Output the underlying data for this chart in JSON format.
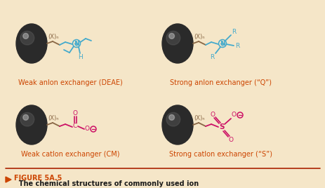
{
  "background_color": "#f5e6c8",
  "label_color": "#cc4400",
  "caption_orange": "#cc4400",
  "caption_black": "#1a1a1a",
  "cyan_color": "#44aacc",
  "magenta_color": "#cc1166",
  "bond_color": "#886644",
  "line_color_bottom": "#aa2200",
  "labels": {
    "top_left": "Weak anlon exchanger (DEAE)",
    "top_right": "Strong anlon exchanger (“Q”)",
    "bottom_left": "Weak catlon exchanger (CM)",
    "bottom_right": "Strong catlon exchanger (“S”)"
  },
  "caption_bold": "FIGURE 5A.5",
  "caption_rest": "  The chemical structures of commonly used ion\nexchange media.",
  "figsize": [
    4.64,
    2.68
  ],
  "dpi": 100
}
